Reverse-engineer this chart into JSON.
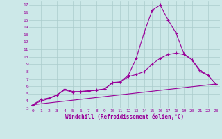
{
  "xlabel": "Windchill (Refroidissement éolien,°C)",
  "bg_color": "#cce8e8",
  "grid_color": "#aacccc",
  "line_color": "#990099",
  "xlim": [
    -0.5,
    23.5
  ],
  "ylim": [
    3,
    17.5
  ],
  "xticks": [
    0,
    1,
    2,
    3,
    4,
    5,
    6,
    7,
    8,
    9,
    10,
    11,
    12,
    13,
    14,
    15,
    16,
    17,
    18,
    19,
    20,
    21,
    22,
    23
  ],
  "yticks": [
    3,
    4,
    5,
    6,
    7,
    8,
    9,
    10,
    11,
    12,
    13,
    14,
    15,
    16,
    17
  ],
  "series1_x": [
    0,
    1,
    2,
    3,
    4,
    5,
    6,
    7,
    8,
    9,
    10,
    11,
    12,
    13,
    14,
    15,
    16,
    17,
    18,
    19,
    20,
    21,
    22,
    23
  ],
  "series1_y": [
    3.5,
    4.2,
    4.4,
    4.8,
    5.5,
    5.2,
    5.3,
    5.4,
    5.5,
    5.6,
    6.5,
    6.6,
    7.5,
    9.8,
    13.3,
    16.3,
    17.0,
    15.0,
    13.2,
    10.4,
    9.6,
    8.0,
    7.5,
    6.3
  ],
  "series2_x": [
    0,
    1,
    2,
    3,
    4,
    5,
    6,
    7,
    8,
    9,
    10,
    11,
    12,
    13,
    14,
    15,
    16,
    17,
    18,
    19,
    20,
    21,
    22,
    23
  ],
  "series2_y": [
    3.5,
    4.0,
    4.3,
    4.8,
    5.6,
    5.3,
    5.25,
    5.35,
    5.45,
    5.65,
    6.45,
    6.55,
    7.3,
    7.6,
    8.0,
    9.0,
    9.8,
    10.3,
    10.5,
    10.3,
    9.6,
    8.2,
    7.5,
    6.3
  ],
  "series3_x": [
    0,
    23
  ],
  "series3_y": [
    3.5,
    6.3
  ]
}
